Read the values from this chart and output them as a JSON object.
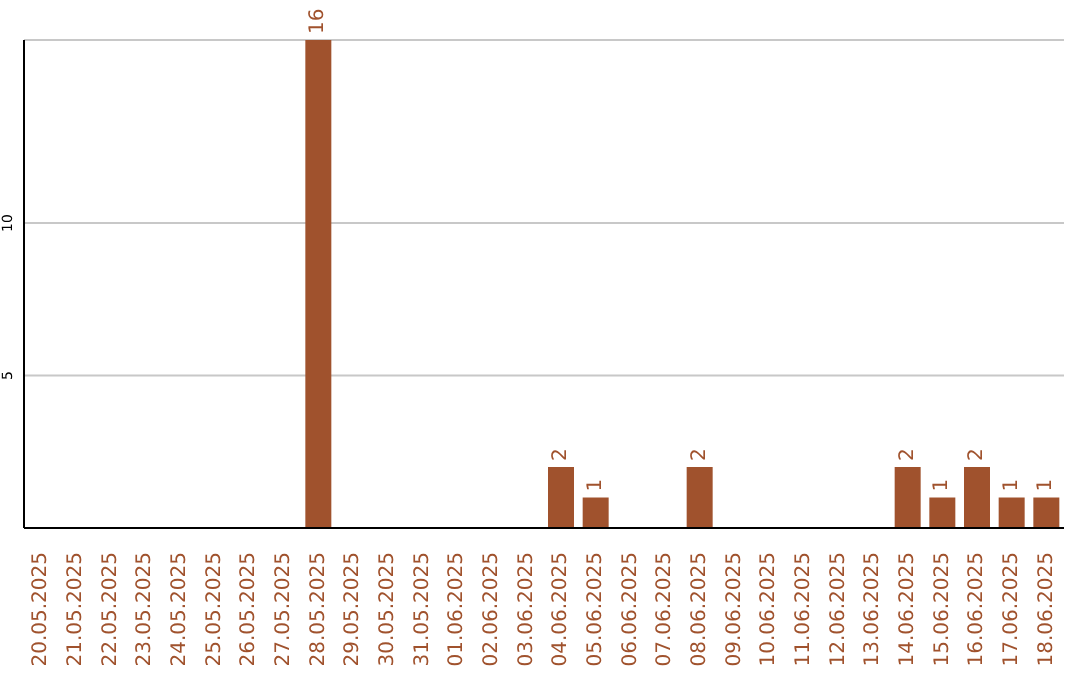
{
  "chart_data": {
    "type": "bar",
    "categories": [
      "20.05.2025",
      "21.05.2025",
      "22.05.2025",
      "23.05.2025",
      "24.05.2025",
      "25.05.2025",
      "26.05.2025",
      "27.05.2025",
      "28.05.2025",
      "29.05.2025",
      "30.05.2025",
      "31.05.2025",
      "01.06.2025",
      "02.06.2025",
      "03.06.2025",
      "04.06.2025",
      "05.06.2025",
      "06.06.2025",
      "07.06.2025",
      "08.06.2025",
      "09.06.2025",
      "10.06.2025",
      "11.06.2025",
      "12.06.2025",
      "13.06.2025",
      "14.06.2025",
      "15.06.2025",
      "16.06.2025",
      "17.06.2025",
      "18.06.2025"
    ],
    "values": [
      0,
      0,
      0,
      0,
      0,
      0,
      0,
      0,
      16,
      0,
      0,
      0,
      0,
      0,
      0,
      2,
      1,
      0,
      0,
      2,
      0,
      0,
      0,
      0,
      0,
      2,
      1,
      2,
      1,
      1
    ],
    "value_labels": [
      null,
      null,
      null,
      null,
      null,
      null,
      null,
      null,
      "16",
      null,
      null,
      null,
      null,
      null,
      null,
      "2",
      "1",
      null,
      null,
      "2",
      null,
      null,
      null,
      null,
      null,
      "2",
      "1",
      "2",
      "1",
      "1"
    ],
    "color": "#a0522d",
    "ylim": [
      0,
      16
    ],
    "yticks": [
      5,
      10
    ],
    "grid": "y"
  }
}
